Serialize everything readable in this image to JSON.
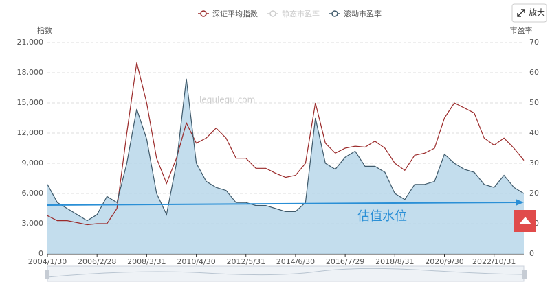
{
  "chart_data": {
    "type": "line",
    "x_axis_title_left": "指数",
    "y2_axis_title": "市盈率",
    "watermark": "legulegu.com",
    "annotation": "估值水位",
    "zoom_button": "放大",
    "categories": [
      "2004/1/30",
      null,
      null,
      null,
      null,
      "2006/2/28",
      null,
      null,
      null,
      null,
      "2008/3/31",
      null,
      null,
      null,
      null,
      "2010/4/30",
      null,
      null,
      null,
      null,
      "2012/5/31",
      null,
      null,
      null,
      null,
      "2014/6/30",
      null,
      null,
      null,
      null,
      "2016/7/29",
      null,
      null,
      null,
      null,
      "2018/8/31",
      null,
      null,
      null,
      null,
      "2020/9/30",
      null,
      null,
      null,
      null,
      "2022/10/31",
      null,
      null,
      null
    ],
    "series": [
      {
        "name": "深证平均指数",
        "color": "#9b2a2a",
        "axis": "y",
        "values": [
          3800,
          3300,
          3300,
          3100,
          2900,
          3000,
          3000,
          4500,
          12000,
          19000,
          15000,
          9500,
          7000,
          9500,
          13000,
          11000,
          11500,
          12500,
          11500,
          9500,
          9500,
          8500,
          8500,
          8000,
          7600,
          7800,
          9000,
          15000,
          11000,
          10000,
          10500,
          10700,
          10600,
          11200,
          10500,
          9000,
          8300,
          9800,
          10000,
          10500,
          13500,
          15000,
          14500,
          14000,
          11500,
          10800,
          11500,
          10500,
          9300
        ]
      },
      {
        "name": "滚动市盈率",
        "color": "#3f5a6b",
        "fill": "#b9d7ea",
        "axis": "y2",
        "values": [
          23,
          17,
          15,
          13,
          11,
          13,
          19,
          17,
          30,
          48,
          38,
          20,
          13,
          30,
          58,
          30,
          24,
          22,
          21,
          17,
          17,
          16,
          16,
          15,
          14,
          14,
          17,
          45,
          30,
          28,
          32,
          34,
          29,
          29,
          27,
          20,
          18,
          23,
          23,
          24,
          33,
          30,
          28,
          27,
          23,
          22,
          26,
          22,
          20
        ]
      }
    ],
    "hidden_series": [
      {
        "name": "静态市盈率",
        "color": "#cccccc"
      }
    ],
    "ylim": [
      0,
      21000
    ],
    "yticks": [
      0,
      {
        "value": 3000,
        "label": "3,000"
      },
      {
        "value": 6000,
        "label": "6,000"
      },
      {
        "value": 9000,
        "label": "9,000"
      },
      {
        "value": 12000,
        "label": "12,000"
      },
      {
        "value": 15000,
        "label": "15,000"
      },
      {
        "value": 18000,
        "label": "18,000"
      },
      {
        "value": 21000,
        "label": "21,000"
      }
    ],
    "y2lim": [
      0,
      70
    ],
    "y2ticks": [
      0,
      10,
      20,
      30,
      40,
      50,
      60,
      70
    ],
    "grid": true
  }
}
